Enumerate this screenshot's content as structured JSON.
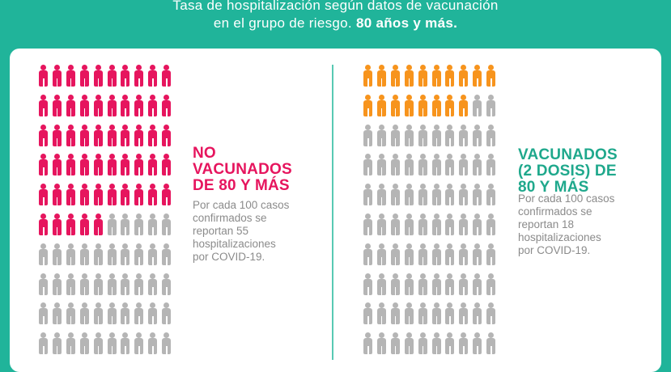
{
  "header": {
    "line1": "Tasa de hospitalización según datos de vacunación",
    "line2_regular": "en el grupo de riesgo.",
    "line2_bold": "80 años y más."
  },
  "left_panel": {
    "title_line1": "NO",
    "title_line2": "VACUNADOS",
    "title_line3": "DE 80 Y MÁS",
    "desc_line1": "Por cada 100 casos",
    "desc_line2": "confirmados se",
    "desc_line3": "reportan 55",
    "desc_line4": "hospitalizaciones",
    "desc_line5": "por COVID-19.",
    "hospitalized": 55,
    "total": 100,
    "highlight_color": "#e6155e",
    "rest_color": "#b5b5b5"
  },
  "right_panel": {
    "title_line1": "VACUNADOS",
    "title_line2": "(2 DOSIS) DE",
    "title_line3": "80 Y MÁS",
    "desc_line1": "Por cada 100 casos",
    "desc_line2": "confirmados se",
    "desc_line3": "reportan 18",
    "desc_line4": "hospitalizaciones",
    "desc_line5": "por COVID-19.",
    "hospitalized": 18,
    "total": 100,
    "highlight_color": "#f7941d",
    "rest_color": "#b5b5b5"
  },
  "icons": {
    "person": "person-icon"
  }
}
